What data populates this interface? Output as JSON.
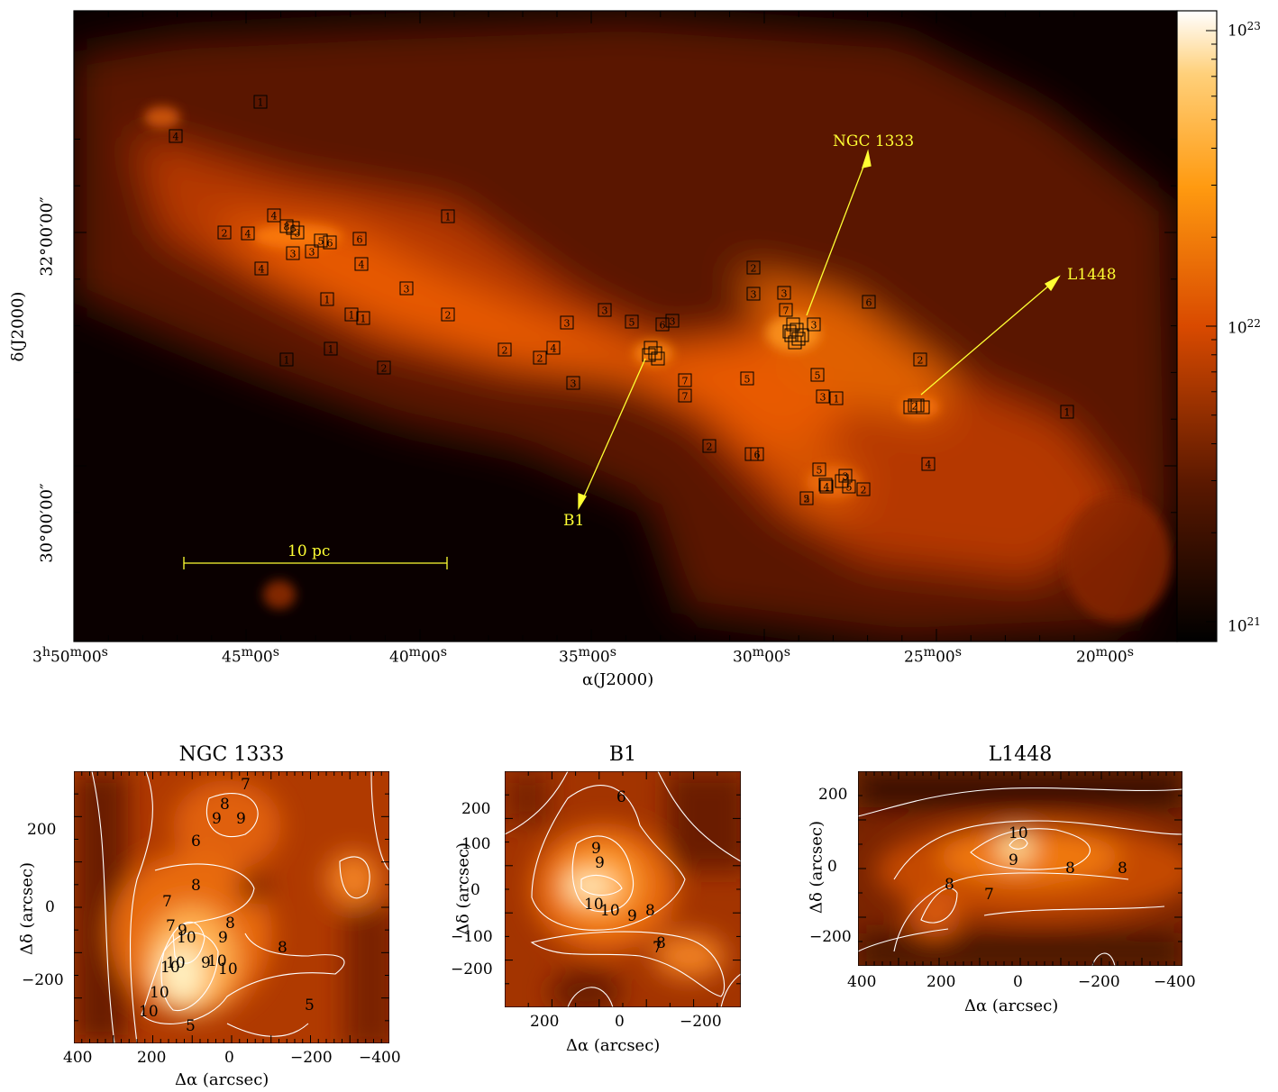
{
  "main_map": {
    "xlabel": "α(J2000)",
    "ylabel": "δ(J2000)",
    "ra_ticks": [
      {
        "h": "3",
        "hu": "h",
        "m": "50",
        "mu": "m",
        "s": "00",
        "su": "s"
      },
      {
        "m": "45",
        "mu": "m",
        "s": "00",
        "su": "s"
      },
      {
        "m": "40",
        "mu": "m",
        "s": "00",
        "su": "s"
      },
      {
        "m": "35",
        "mu": "m",
        "s": "00",
        "su": "s"
      },
      {
        "m": "30",
        "mu": "m",
        "s": "00",
        "su": "s"
      },
      {
        "m": "25",
        "mu": "m",
        "s": "00",
        "su": "s"
      },
      {
        "m": "20",
        "mu": "m",
        "s": "00",
        "su": "s"
      }
    ],
    "dec_ticks": [
      "32°00′00″",
      "30°00′00″"
    ],
    "scale_bar": "10 pc",
    "region_labels": [
      "NGC 1333",
      "L1448",
      "B1"
    ],
    "colorbar": {
      "ticks": [
        {
          "base": "10",
          "exp": "23"
        },
        {
          "base": "10",
          "exp": "22"
        },
        {
          "base": "10",
          "exp": "21"
        }
      ],
      "scale": "log",
      "range": [
        1e+21,
        1e+23
      ]
    },
    "core_markers": [
      "1",
      "4",
      "4",
      "2",
      "4",
      "8",
      "6",
      "3",
      "5",
      "6",
      "6",
      "1",
      "3",
      "3",
      "4",
      "4",
      "3",
      "1",
      "1",
      "1",
      "1",
      "1",
      "2",
      "2",
      "2",
      "4",
      "3",
      "2",
      "3",
      "3",
      "5",
      "6",
      "3",
      "2",
      "3",
      "3",
      "6",
      "5",
      "3",
      "7",
      "2",
      "7",
      "3",
      "1",
      "5",
      "2",
      "1",
      "2",
      "2",
      "6",
      "5",
      "3",
      "4",
      "5",
      "4",
      "2",
      "1",
      "5",
      "7"
    ],
    "colors": {
      "annotation": "#ffff33",
      "cmap_low": "#000000",
      "cmap_mid": "#d94a00",
      "cmap_high": "#ffffff"
    }
  },
  "panels": [
    {
      "title": "NGC 1333",
      "xlabel": "Δα (arcsec)",
      "ylabel": "Δδ (arcsec)",
      "xticks": [
        "400",
        "200",
        "0",
        "−200",
        "−400"
      ],
      "yticks": [
        "200",
        "0",
        "−200"
      ],
      "contour_labels": [
        "7",
        "8",
        "9",
        "9",
        "6",
        "7",
        "8",
        "7",
        "9",
        "8",
        "10",
        "9",
        "10",
        "10",
        "9",
        "10",
        "8",
        "10",
        "10",
        "10",
        "5",
        "5"
      ]
    },
    {
      "title": "B1",
      "xlabel": "Δα (arcsec)",
      "ylabel": "Δδ (arcsec)",
      "xticks": [
        "200",
        "0",
        "−200"
      ],
      "yticks": [
        "200",
        "100",
        "0",
        "−100",
        "−200"
      ],
      "contour_labels": [
        "6",
        "9",
        "9",
        "10",
        "10",
        "9",
        "8",
        "7",
        "8"
      ]
    },
    {
      "title": "L1448",
      "xlabel": "Δα (arcsec)",
      "ylabel": "Δδ (arcsec)",
      "xticks": [
        "400",
        "200",
        "0",
        "−200",
        "−400"
      ],
      "yticks": [
        "200",
        "0",
        "−200"
      ],
      "contour_labels": [
        "10",
        "9",
        "8",
        "8",
        "8",
        "7"
      ]
    }
  ]
}
